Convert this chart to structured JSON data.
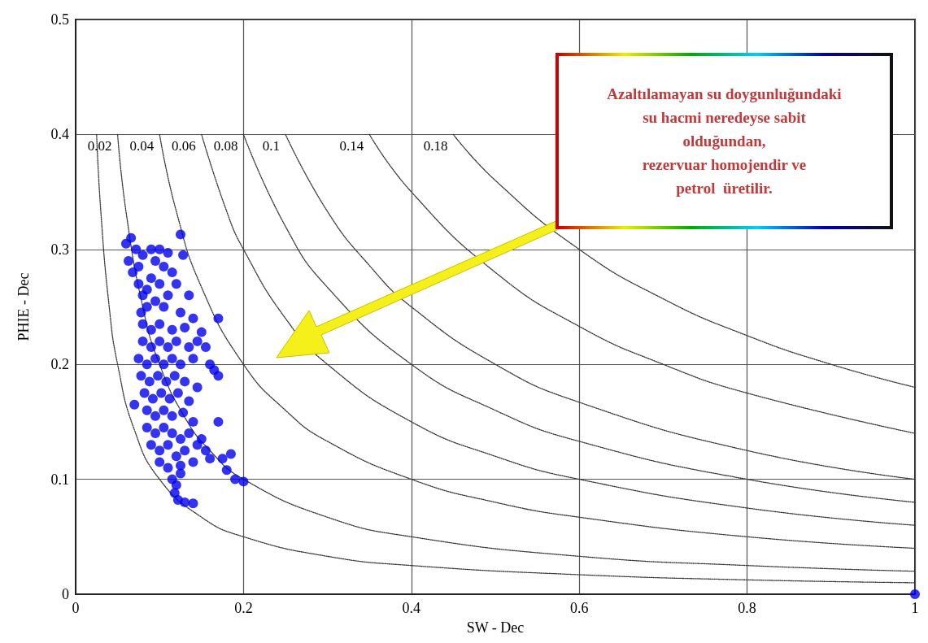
{
  "chart_data": {
    "type": "scatter",
    "xlabel": "SW - Dec",
    "ylabel": "PHIE - Dec",
    "xlim": [
      0,
      1
    ],
    "xticks": [
      0,
      0.2,
      0.4,
      0.6,
      0.8,
      1
    ],
    "ylim": [
      0,
      0.5
    ],
    "yticks": [
      0,
      0.1,
      0.2,
      0.3,
      0.4,
      0.5
    ],
    "grid": true,
    "annotations": [
      "Azaltılamayan su doygunluğundaki\nsu hacmi neredeyse sabit\nolduğundan,\nrezervuar homojendir ve\npetrol  üretilir."
    ],
    "series": [
      {
        "color": "#0000ee",
        "marker": "circle",
        "x": [
          0.06,
          0.066,
          0.072,
          0.063,
          0.075,
          0.08,
          0.068,
          0.125,
          0.128,
          0.09,
          0.1,
          0.11,
          0.095,
          0.105,
          0.115,
          0.09,
          0.1,
          0.12,
          0.135,
          0.11,
          0.095,
          0.085,
          0.105,
          0.125,
          0.14,
          0.17,
          0.078,
          0.08,
          0.09,
          0.1,
          0.115,
          0.13,
          0.15,
          0.145,
          0.155,
          0.08,
          0.09,
          0.1,
          0.11,
          0.12,
          0.135,
          0.075,
          0.085,
          0.095,
          0.105,
          0.115,
          0.125,
          0.14,
          0.16,
          0.165,
          0.17,
          0.078,
          0.088,
          0.098,
          0.108,
          0.118,
          0.13,
          0.145,
          0.082,
          0.092,
          0.102,
          0.112,
          0.122,
          0.135,
          0.07,
          0.085,
          0.095,
          0.105,
          0.115,
          0.128,
          0.14,
          0.17,
          0.085,
          0.095,
          0.105,
          0.115,
          0.125,
          0.135,
          0.15,
          0.09,
          0.1,
          0.11,
          0.12,
          0.13,
          0.145,
          0.155,
          0.16,
          0.1,
          0.11,
          0.125,
          0.14,
          0.175,
          0.185,
          0.18,
          0.19,
          0.2,
          0.115,
          0.12,
          0.125,
          0.118,
          0.122,
          0.13,
          0.14,
          0.085,
          0.08,
          0.075,
          1
        ],
        "values": [
          0.305,
          0.31,
          0.3,
          0.29,
          0.285,
          0.295,
          0.28,
          0.313,
          0.295,
          0.3,
          0.3,
          0.297,
          0.29,
          0.285,
          0.28,
          0.275,
          0.27,
          0.27,
          0.26,
          0.26,
          0.255,
          0.25,
          0.25,
          0.245,
          0.24,
          0.24,
          0.245,
          0.235,
          0.23,
          0.235,
          0.23,
          0.232,
          0.228,
          0.22,
          0.215,
          0.22,
          0.215,
          0.22,
          0.215,
          0.22,
          0.215,
          0.205,
          0.2,
          0.205,
          0.2,
          0.205,
          0.2,
          0.205,
          0.2,
          0.195,
          0.19,
          0.19,
          0.185,
          0.19,
          0.185,
          0.19,
          0.185,
          0.18,
          0.175,
          0.17,
          0.175,
          0.17,
          0.175,
          0.168,
          0.165,
          0.16,
          0.155,
          0.16,
          0.155,
          0.158,
          0.15,
          0.15,
          0.145,
          0.14,
          0.145,
          0.14,
          0.135,
          0.14,
          0.135,
          0.13,
          0.125,
          0.13,
          0.12,
          0.125,
          0.13,
          0.125,
          0.118,
          0.115,
          0.11,
          0.112,
          0.115,
          0.118,
          0.122,
          0.108,
          0.1,
          0.098,
          0.1,
          0.095,
          0.105,
          0.088,
          0.082,
          0.08,
          0.079,
          0.265,
          0.26,
          0.27,
          0
        ]
      },
      {
        "type": "line",
        "marker": "none",
        "color": "#333333",
        "line_style": "dotted",
        "x": [
          0.025,
          0.03,
          0.04,
          0.05,
          0.07,
          0.1,
          0.15,
          0.2,
          0.3,
          0.4,
          0.6,
          0.8,
          1
        ],
        "values": [
          0.4,
          0.333,
          0.25,
          0.2,
          0.143,
          0.1,
          0.067,
          0.05,
          0.033,
          0.025,
          0.017,
          0.0125,
          0.01
        ]
      },
      {
        "type": "line",
        "marker": "none",
        "name": "0.02",
        "color": "#333333",
        "line_style": "dotted",
        "x": [
          0.05,
          0.06,
          0.08,
          0.1,
          0.13,
          0.16,
          0.2,
          0.3,
          0.4,
          0.6,
          0.8,
          1
        ],
        "values": [
          0.4,
          0.333,
          0.25,
          0.2,
          0.154,
          0.125,
          0.1,
          0.067,
          0.05,
          0.033,
          0.025,
          0.02
        ]
      },
      {
        "type": "line",
        "marker": "none",
        "name": "0.04",
        "color": "#333333",
        "line_style": "dotted",
        "x": [
          0.1,
          0.12,
          0.15,
          0.2,
          0.25,
          0.3,
          0.4,
          0.5,
          0.6,
          0.8,
          1
        ],
        "values": [
          0.4,
          0.333,
          0.267,
          0.2,
          0.16,
          0.133,
          0.1,
          0.08,
          0.067,
          0.05,
          0.04
        ]
      },
      {
        "type": "line",
        "marker": "none",
        "name": "0.06",
        "color": "#333333",
        "line_style": "dotted",
        "x": [
          0.15,
          0.18,
          0.2,
          0.25,
          0.3,
          0.4,
          0.5,
          0.6,
          0.8,
          1
        ],
        "values": [
          0.4,
          0.333,
          0.3,
          0.24,
          0.2,
          0.15,
          0.12,
          0.1,
          0.075,
          0.06
        ]
      },
      {
        "type": "line",
        "marker": "none",
        "name": "0.08",
        "color": "#333333",
        "line_style": "dotted",
        "x": [
          0.2,
          0.25,
          0.3,
          0.4,
          0.5,
          0.6,
          0.8,
          1
        ],
        "values": [
          0.4,
          0.32,
          0.267,
          0.2,
          0.16,
          0.133,
          0.1,
          0.08
        ]
      },
      {
        "type": "line",
        "marker": "none",
        "name": "0.1",
        "color": "#333333",
        "line_style": "dotted",
        "x": [
          0.25,
          0.3,
          0.35,
          0.4,
          0.5,
          0.6,
          0.8,
          1
        ],
        "values": [
          0.4,
          0.333,
          0.286,
          0.25,
          0.2,
          0.167,
          0.125,
          0.1
        ]
      },
      {
        "type": "line",
        "marker": "none",
        "name": "0.14",
        "color": "#333333",
        "line_style": "dotted",
        "x": [
          0.35,
          0.4,
          0.5,
          0.6,
          0.7,
          0.8,
          1
        ],
        "values": [
          0.4,
          0.35,
          0.28,
          0.233,
          0.2,
          0.175,
          0.14
        ]
      },
      {
        "type": "line",
        "marker": "none",
        "name": "0.18",
        "color": "#333333",
        "line_style": "dotted",
        "x": [
          0.45,
          0.5,
          0.6,
          0.7,
          0.8,
          0.9,
          1
        ],
        "values": [
          0.4,
          0.36,
          0.3,
          0.257,
          0.225,
          0.2,
          0.18
        ]
      }
    ]
  }
}
